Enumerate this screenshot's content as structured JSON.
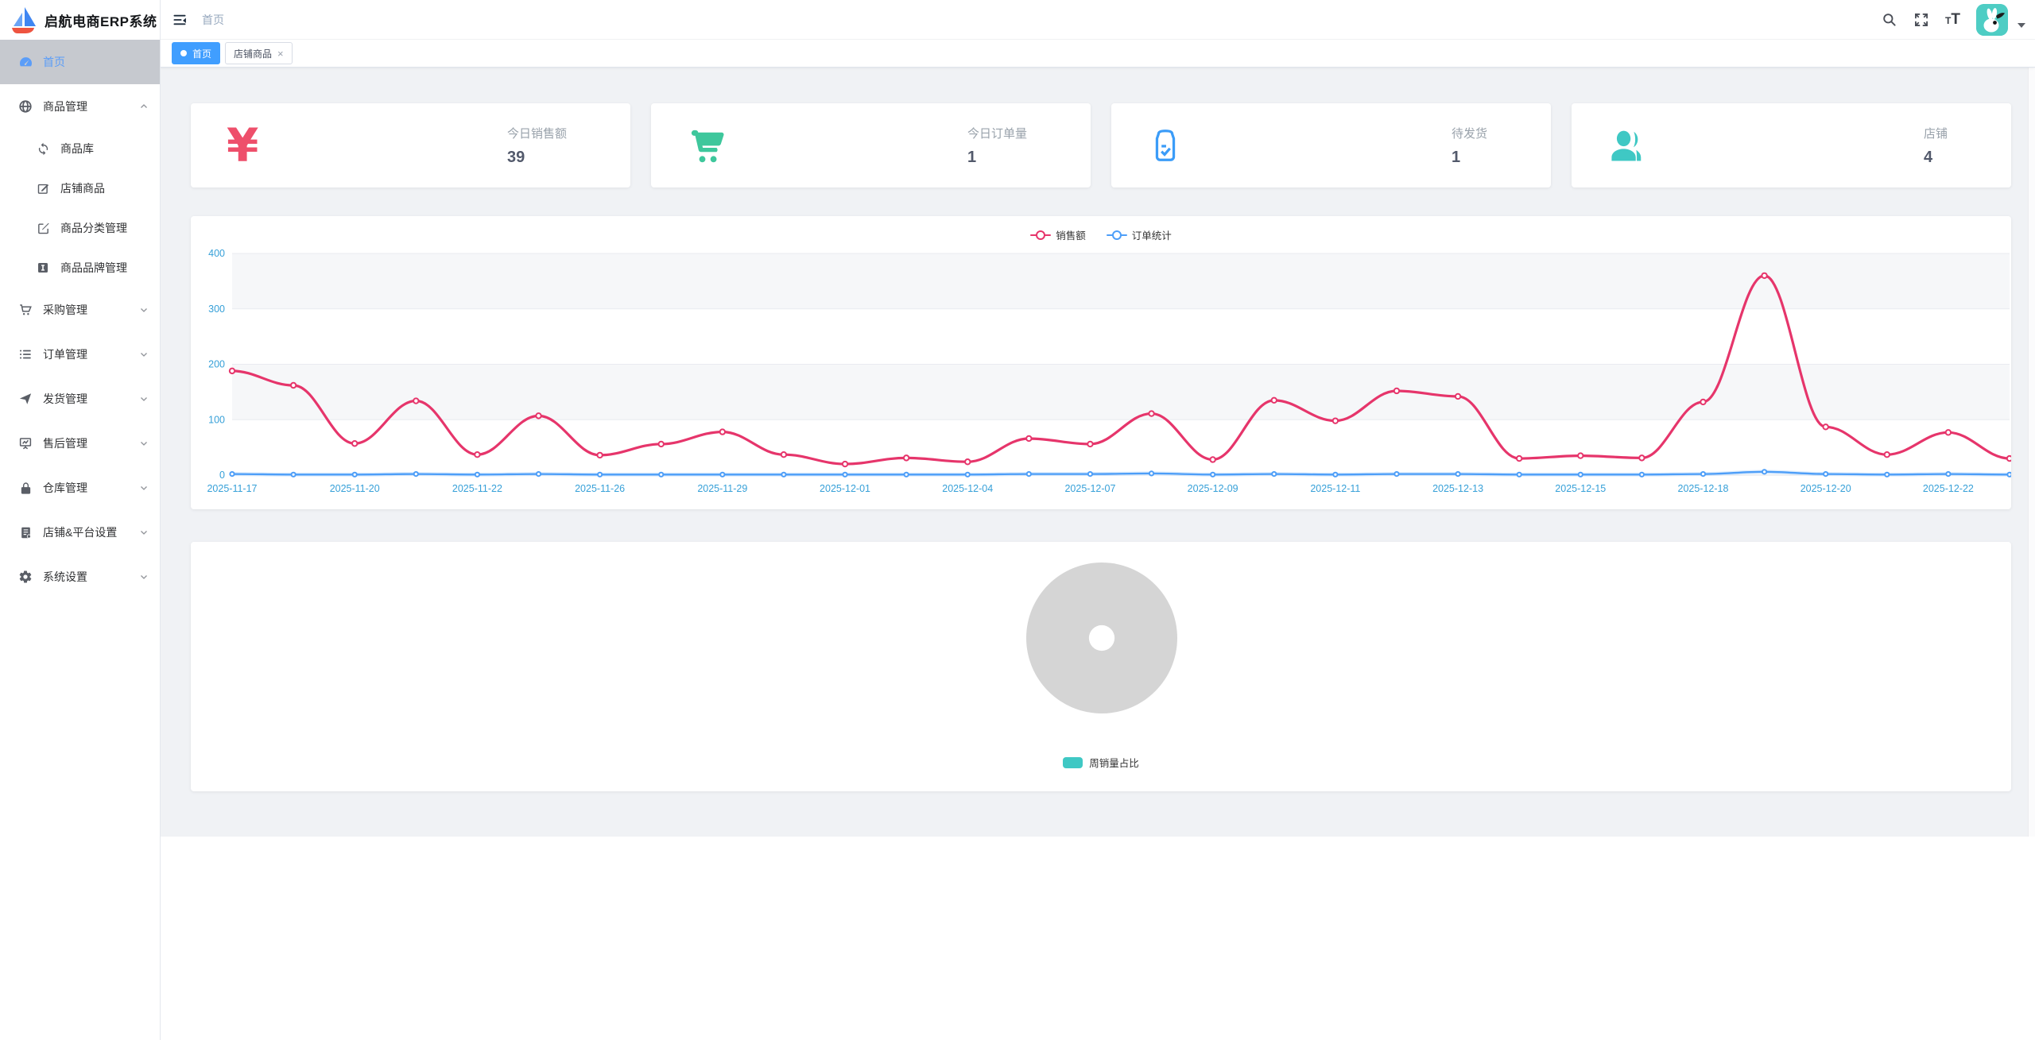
{
  "app": {
    "name": "启航电商ERP系统"
  },
  "topbar": {
    "breadcrumb": "首页",
    "font_icon_small": "T",
    "font_icon_large": "T",
    "icons": [
      "search-icon",
      "fullscreen-icon",
      "font-size-icon",
      "avatar",
      "caret-down-icon"
    ]
  },
  "tabs": {
    "close_glyph": "×",
    "items": [
      {
        "label": "首页",
        "active": true,
        "closable": false
      },
      {
        "label": "店铺商品",
        "active": false,
        "closable": true
      }
    ]
  },
  "sidebar": {
    "items": [
      {
        "label": "首页",
        "icon": "dashboard-icon",
        "active": true
      },
      {
        "label": "商品管理",
        "icon": "globe-icon",
        "expanded": true,
        "children": [
          {
            "label": "商品库",
            "icon": "sync-icon"
          },
          {
            "label": "店铺商品",
            "icon": "edit-icon"
          },
          {
            "label": "商品分类管理",
            "icon": "edit-square-icon"
          },
          {
            "label": "商品品牌管理",
            "icon": "brand-icon"
          }
        ]
      },
      {
        "label": "采购管理",
        "icon": "cart-icon",
        "expanded": false
      },
      {
        "label": "订单管理",
        "icon": "list-icon",
        "expanded": false
      },
      {
        "label": "发货管理",
        "icon": "send-icon",
        "expanded": false
      },
      {
        "label": "售后管理",
        "icon": "board-icon",
        "expanded": false
      },
      {
        "label": "仓库管理",
        "icon": "lock-icon",
        "expanded": false
      },
      {
        "label": "店铺&平台设置",
        "icon": "ledger-icon",
        "expanded": false
      },
      {
        "label": "系统设置",
        "icon": "gear-icon",
        "expanded": false
      }
    ]
  },
  "stat_cards": [
    {
      "label": "今日销售额",
      "value": "39",
      "icon": "yuan-icon",
      "icon_glyph": "¥",
      "icon_color": "#ee4f6b"
    },
    {
      "label": "今日订单量",
      "value": "1",
      "icon": "cart-icon",
      "icon_color": "#3ec79c"
    },
    {
      "label": "待发货",
      "value": "1",
      "icon": "clipboard-check-icon",
      "icon_color": "#3b9cf8"
    },
    {
      "label": "店铺",
      "value": "4",
      "icon": "users-icon",
      "icon_color": "#3fc8c4"
    }
  ],
  "chart_data": [
    {
      "type": "line",
      "title": "",
      "legend": [
        "销售额",
        "订单统计"
      ],
      "legend_position": "top-center",
      "smooth": true,
      "grid": "horizontal gridlines with alternating gray/white split-area bands",
      "ylim": [
        0,
        400
      ],
      "y_ticks": [
        0,
        100,
        200,
        300,
        400
      ],
      "axis_label_color": "#36a0d8",
      "x_labels_visible": [
        "2025-11-17",
        "2025-11-20",
        "2025-11-22",
        "2025-11-26",
        "2025-11-29",
        "2025-12-01",
        "2025-12-04",
        "2025-12-07",
        "2025-12-09",
        "2025-12-11",
        "2025-12-13",
        "2025-12-15",
        "2025-12-18",
        "2025-12-20",
        "2025-12-22"
      ],
      "label_every_n_points": 2,
      "series": [
        {
          "name": "销售额",
          "color": "#e6356b",
          "values": [
            188,
            162,
            57,
            134,
            37,
            107,
            36,
            56,
            78,
            37,
            20,
            31,
            24,
            66,
            56,
            111,
            28,
            135,
            98,
            152,
            142,
            30,
            35,
            31,
            132,
            360,
            87,
            37,
            77,
            30
          ]
        },
        {
          "name": "订单统计",
          "color": "#4d9ef8",
          "values": [
            2,
            1,
            1,
            2,
            1,
            2,
            1,
            1,
            1,
            1,
            1,
            1,
            1,
            2,
            2,
            3,
            1,
            2,
            1,
            2,
            2,
            1,
            1,
            1,
            2,
            6,
            2,
            1,
            2,
            1
          ]
        }
      ]
    },
    {
      "type": "pie",
      "title": "",
      "legend": [
        "周销量占比"
      ],
      "legend_color": "#3fc8c4",
      "legend_position": "bottom-center",
      "placeholder": true,
      "donut_hole_ratio": 0.17,
      "slices": [
        {
          "name": "周销量占比",
          "value": null,
          "color": "#d5d5d5",
          "note": "empty placeholder shown as full gray donut"
        }
      ]
    }
  ],
  "colors": {
    "primary": "#409eff",
    "sales_line": "#e6356b",
    "orders_line": "#4d9ef8",
    "axis_label": "#36a0d8",
    "teal": "#3fc8c4",
    "green": "#3ec79c",
    "blue_icon": "#3b9cf8",
    "pink_icon": "#ee4f6b",
    "donut_gray": "#d5d5d5",
    "content_bg": "#f0f2f5",
    "sidebar_active_bg": "#c6c9cf",
    "breadcrumb_text": "#97a8be"
  }
}
